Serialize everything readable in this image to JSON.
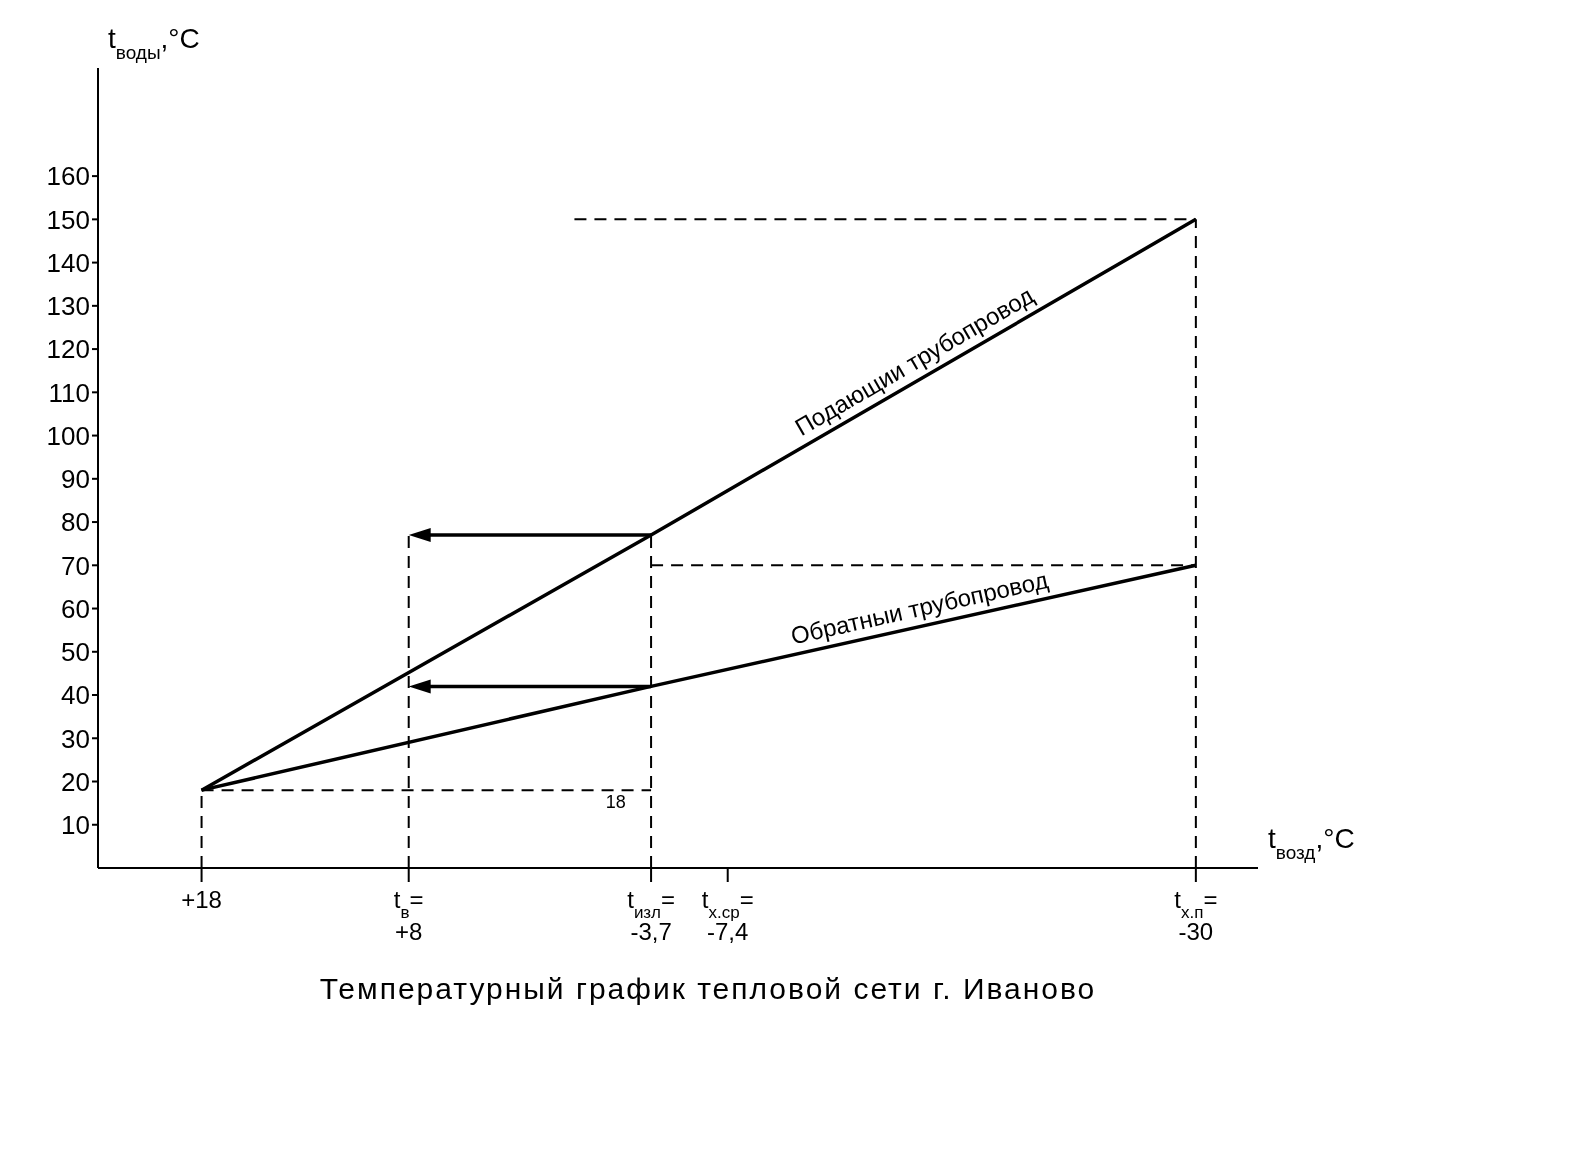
{
  "chart_data": {
    "type": "line",
    "title": "Температурный график тепловой сети г. Иваново",
    "xlabel": "t$_{возд}$,°C",
    "ylabel": "t$_{воды}$,°C",
    "xlim": [
      23,
      -33
    ],
    "ylim": [
      0,
      185
    ],
    "xticks": [
      {
        "value": 18,
        "label": "+18"
      },
      {
        "value": 8,
        "label": "t$_{в}$=+8"
      },
      {
        "value": -3.7,
        "label": "t$_{изл}$=-3,7"
      },
      {
        "value": -7.4,
        "label": "t$_{х.ср}$=-7,4"
      },
      {
        "value": -30,
        "label": "t$_{х.п}$=-30"
      }
    ],
    "yticks": [
      10,
      20,
      30,
      40,
      50,
      60,
      70,
      80,
      90,
      100,
      110,
      120,
      130,
      140,
      150,
      160
    ],
    "annotations": [
      {
        "text": "18",
        "x": -2,
        "y": 18
      }
    ],
    "series": [
      {
        "name": "Подающии трубопровод",
        "color": "#000000",
        "x": [
          18,
          -3.7,
          -30
        ],
        "values": [
          18,
          77,
          150
        ]
      },
      {
        "name": "Обратныи трубопровод",
        "color": "#000000",
        "x": [
          18,
          -3.7,
          -30
        ],
        "values": [
          18,
          42,
          70
        ]
      },
      {
        "color": "#000000",
        "line_style": "dashed",
        "x": [
          18,
          18
        ],
        "values": [
          0,
          18
        ]
      },
      {
        "color": "#000000",
        "line_style": "dashed",
        "x": [
          18,
          -3.7
        ],
        "values": [
          18,
          18
        ]
      },
      {
        "color": "#000000",
        "line_style": "dashed",
        "x": [
          8,
          8
        ],
        "values": [
          0,
          77
        ]
      },
      {
        "color": "#000000",
        "line_style": "dashed",
        "x": [
          -3.7,
          -3.7
        ],
        "values": [
          0,
          77
        ]
      },
      {
        "color": "#000000",
        "line_style": "dashed",
        "x": [
          -30,
          -30
        ],
        "values": [
          0,
          150
        ]
      },
      {
        "color": "#000000",
        "line_style": "dashed",
        "x": [
          0,
          -30
        ],
        "values": [
          150,
          150
        ]
      },
      {
        "color": "#000000",
        "line_style": "dashed",
        "x": [
          -3.7,
          -30
        ],
        "values": [
          70,
          70
        ]
      }
    ]
  }
}
